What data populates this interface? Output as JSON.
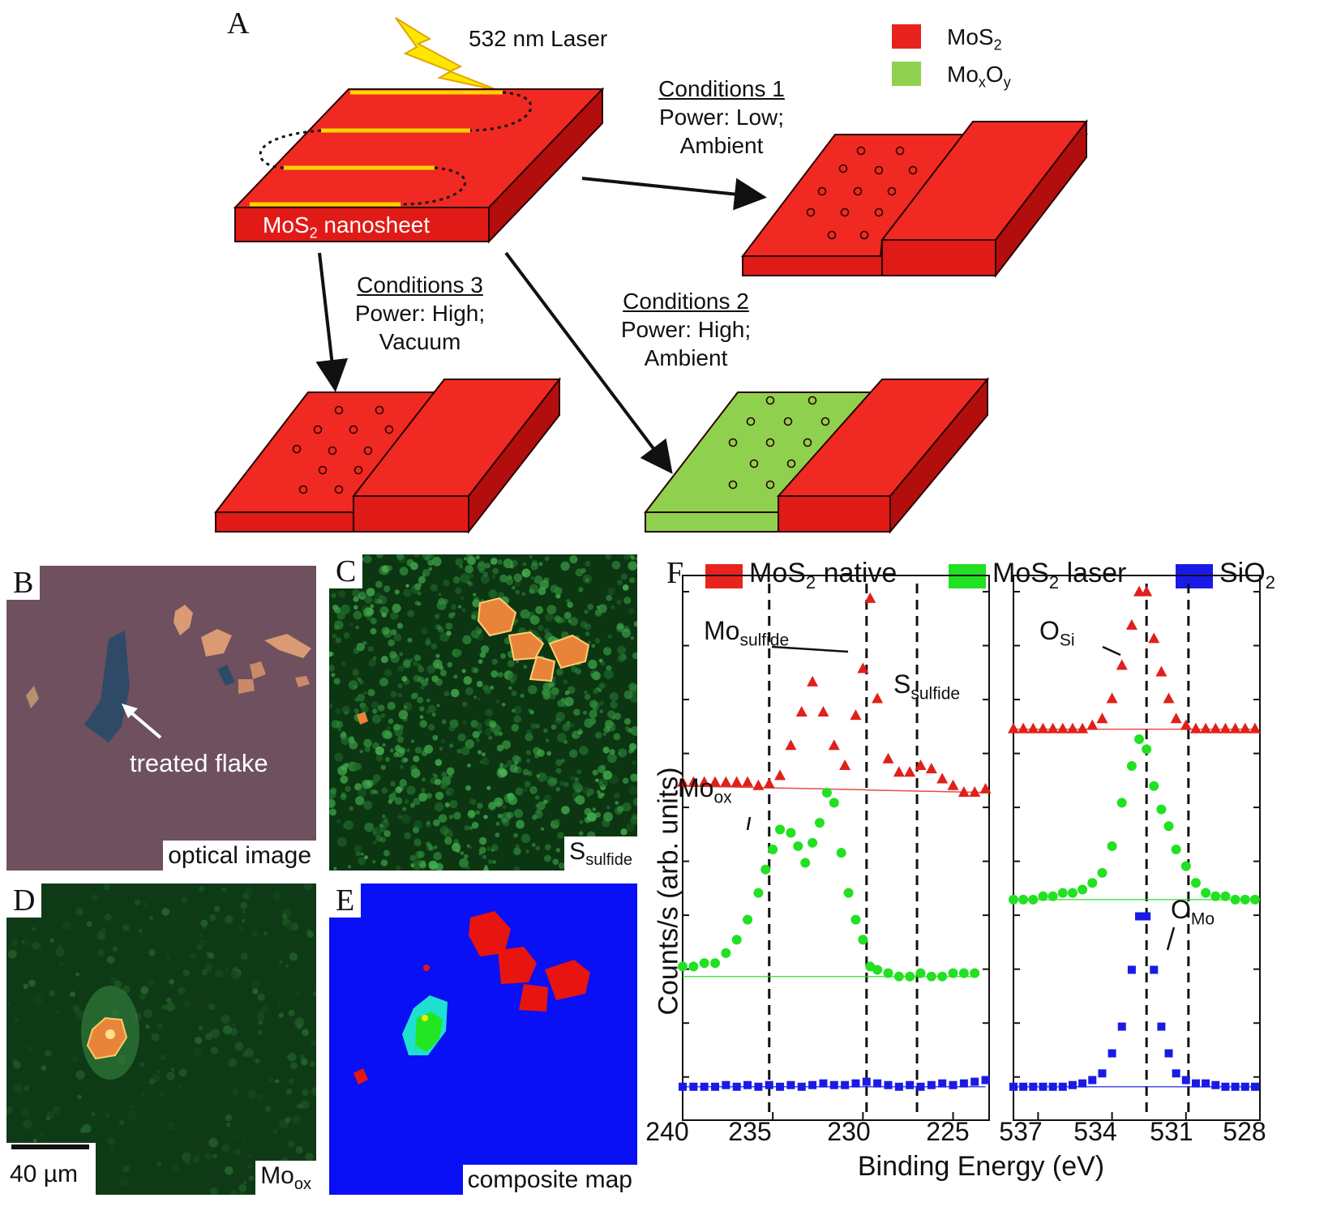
{
  "panelA": {
    "letter": "A",
    "laser": "532 nm Laser",
    "nanosheet_label": "MoS",
    "nanosheet_sub": "2",
    "nanosheet_tail": " nanosheet",
    "legend": [
      {
        "main": "MoS",
        "sub": "2",
        "tail": "",
        "color": "#e8231e"
      },
      {
        "main": "Mo",
        "sub": "x",
        "tail": "O",
        "sub2": "y",
        "color": "#8fd14f"
      }
    ],
    "conditions": [
      {
        "title": "Conditions 1",
        "line1": "Power: Low;",
        "line2": "Ambient"
      },
      {
        "title": "Conditions 2",
        "line1": "Power: High;",
        "line2": "Ambient"
      },
      {
        "title": "Conditions 3",
        "line1": "Power: High;",
        "line2": "Vacuum"
      }
    ],
    "colors": {
      "mos2_top": "#f02a22",
      "mos2_front": "#e01a16",
      "mos2_side": "#b20e0e",
      "moxoy": "#8fd14f",
      "laser_line": "#ffd200"
    }
  },
  "panelB": {
    "letter": "B",
    "caption": "optical image",
    "annotation": "treated flake"
  },
  "panelC": {
    "letter": "C",
    "caption_main": "S",
    "caption_sub": "sulfide"
  },
  "panelD": {
    "letter": "D",
    "caption_main": "Mo",
    "caption_sub": "ox",
    "scalebar": "40 µm"
  },
  "panelE": {
    "letter": "E",
    "caption": "composite map"
  },
  "panelF": {
    "letter": "F",
    "legend": [
      {
        "main": "MoS",
        "sub": "2",
        "tail": " native",
        "color": "#e8231e"
      },
      {
        "main": "MoS",
        "sub": "2",
        "tail": " laser",
        "color": "#22e022"
      },
      {
        "main": "SiO",
        "sub": "2",
        "tail": "",
        "color": "#1a1ae6"
      }
    ],
    "ylabel": "Counts/s (arb. units)",
    "xlabel": "Binding Energy (eV)",
    "left": {
      "xticks": [
        "240",
        "235",
        "230",
        "225"
      ],
      "annotations": [
        {
          "main": "Mo",
          "sub": "sulfide"
        },
        {
          "main": "S",
          "sub": "sulfide"
        },
        {
          "main": "Mo",
          "sub": "ox"
        }
      ]
    },
    "right": {
      "xticks": [
        "537",
        "534",
        "531",
        "528"
      ],
      "annotations": [
        {
          "main": "O",
          "sub": "Si"
        },
        {
          "main": "O",
          "sub": "Mo"
        }
      ]
    }
  },
  "chart_data": [
    {
      "type": "scatter",
      "title": "",
      "xlabel": "Binding Energy (eV)",
      "ylabel": "Counts/s (arb. units)",
      "xlim": [
        240,
        223
      ],
      "xticks": [
        240,
        235,
        230,
        225
      ],
      "vlines": [
        235.2,
        229.8,
        227.0
      ],
      "series": [
        {
          "name": "MoS2 native",
          "marker": "triangle",
          "x": [
            240,
            239.4,
            238.8,
            238.2,
            237.6,
            237,
            236.4,
            235.8,
            235.2,
            234.6,
            234,
            233.4,
            232.8,
            232.2,
            231.6,
            231,
            230.4,
            230,
            229.6,
            229.2,
            228.6,
            228,
            227.4,
            226.8,
            226.2,
            225.6,
            225,
            224.4,
            223.8,
            223.2
          ],
          "y": [
            0.93,
            0.93,
            0.93,
            0.93,
            0.93,
            0.93,
            0.93,
            0.92,
            0.925,
            0.95,
            1.04,
            1.14,
            1.23,
            1.14,
            1.04,
            0.98,
            1.13,
            1.27,
            1.48,
            1.18,
            1.0,
            0.96,
            0.96,
            0.98,
            0.97,
            0.94,
            0.92,
            0.9,
            0.9,
            0.91
          ]
        },
        {
          "name": "MoS2 laser",
          "marker": "circle",
          "x": [
            240,
            239.4,
            238.8,
            238.2,
            237.6,
            237,
            236.4,
            235.8,
            235.4,
            235,
            234.6,
            234,
            233.6,
            233.2,
            232.8,
            232.4,
            232,
            231.6,
            231.2,
            230.8,
            230.4,
            230,
            229.6,
            229.2,
            228.6,
            228,
            227.4,
            226.8,
            226.2,
            225.6,
            225,
            224.4,
            223.8
          ],
          "y": [
            0.38,
            0.38,
            0.39,
            0.39,
            0.42,
            0.46,
            0.52,
            0.6,
            0.67,
            0.73,
            0.79,
            0.78,
            0.74,
            0.69,
            0.75,
            0.81,
            0.9,
            0.87,
            0.72,
            0.6,
            0.52,
            0.46,
            0.38,
            0.37,
            0.36,
            0.35,
            0.35,
            0.36,
            0.35,
            0.35,
            0.36,
            0.36,
            0.36
          ]
        },
        {
          "name": "SiO2",
          "marker": "square",
          "x": [
            240,
            239.4,
            238.8,
            238.2,
            237.6,
            237,
            236.4,
            235.8,
            235.2,
            234.6,
            234,
            233.4,
            232.8,
            232.2,
            231.6,
            231,
            230.4,
            229.8,
            229.2,
            228.6,
            228,
            227.4,
            226.8,
            226.2,
            225.6,
            225,
            224.4,
            223.8,
            223.2
          ],
          "y": [
            0.02,
            0.02,
            0.02,
            0.02,
            0.025,
            0.02,
            0.025,
            0.02,
            0.025,
            0.02,
            0.025,
            0.02,
            0.025,
            0.03,
            0.025,
            0.025,
            0.03,
            0.035,
            0.03,
            0.025,
            0.02,
            0.025,
            0.02,
            0.025,
            0.03,
            0.025,
            0.03,
            0.035,
            0.04
          ]
        }
      ]
    },
    {
      "type": "scatter",
      "title": "",
      "xlabel": "Binding Energy (eV)",
      "ylabel": "Counts/s (arb. units)",
      "xlim": [
        538,
        528
      ],
      "xticks": [
        537,
        534,
        531,
        528
      ],
      "vlines": [
        532.6,
        530.9
      ],
      "series": [
        {
          "name": "MoS2 native",
          "marker": "triangle",
          "x": [
            538,
            537.6,
            537.2,
            536.8,
            536.4,
            536,
            535.6,
            535.2,
            534.8,
            534.4,
            534,
            533.6,
            533.2,
            532.9,
            532.6,
            532.3,
            532,
            531.7,
            531.4,
            531,
            530.6,
            530.2,
            529.8,
            529.4,
            529,
            528.6,
            528.2
          ],
          "y": [
            1.09,
            1.09,
            1.09,
            1.09,
            1.09,
            1.09,
            1.09,
            1.09,
            1.1,
            1.12,
            1.18,
            1.28,
            1.4,
            1.5,
            1.5,
            1.36,
            1.26,
            1.18,
            1.12,
            1.1,
            1.09,
            1.09,
            1.09,
            1.09,
            1.09,
            1.09,
            1.09
          ]
        },
        {
          "name": "MoS2 laser",
          "marker": "circle",
          "x": [
            538,
            537.6,
            537.2,
            536.8,
            536.4,
            536,
            535.6,
            535.2,
            534.8,
            534.4,
            534,
            533.6,
            533.2,
            532.9,
            532.6,
            532.3,
            532,
            531.7,
            531.4,
            531,
            530.6,
            530.2,
            529.8,
            529.4,
            529,
            528.6,
            528.2
          ],
          "y": [
            0.58,
            0.58,
            0.58,
            0.59,
            0.59,
            0.6,
            0.6,
            0.61,
            0.63,
            0.66,
            0.74,
            0.87,
            0.98,
            1.06,
            1.03,
            0.92,
            0.85,
            0.8,
            0.73,
            0.68,
            0.63,
            0.6,
            0.59,
            0.59,
            0.58,
            0.58,
            0.58
          ]
        },
        {
          "name": "SiO2",
          "marker": "square",
          "x": [
            538,
            537.6,
            537.2,
            536.8,
            536.4,
            536,
            535.6,
            535.2,
            534.8,
            534.4,
            534,
            533.6,
            533.2,
            532.9,
            532.6,
            532.3,
            532,
            531.7,
            531.4,
            531,
            530.6,
            530.2,
            529.8,
            529.4,
            529,
            528.6,
            528.2
          ],
          "y": [
            0.02,
            0.02,
            0.02,
            0.02,
            0.02,
            0.02,
            0.025,
            0.03,
            0.04,
            0.06,
            0.12,
            0.2,
            0.37,
            0.53,
            0.53,
            0.37,
            0.2,
            0.12,
            0.06,
            0.04,
            0.03,
            0.03,
            0.025,
            0.02,
            0.02,
            0.02,
            0.02
          ]
        }
      ]
    }
  ]
}
